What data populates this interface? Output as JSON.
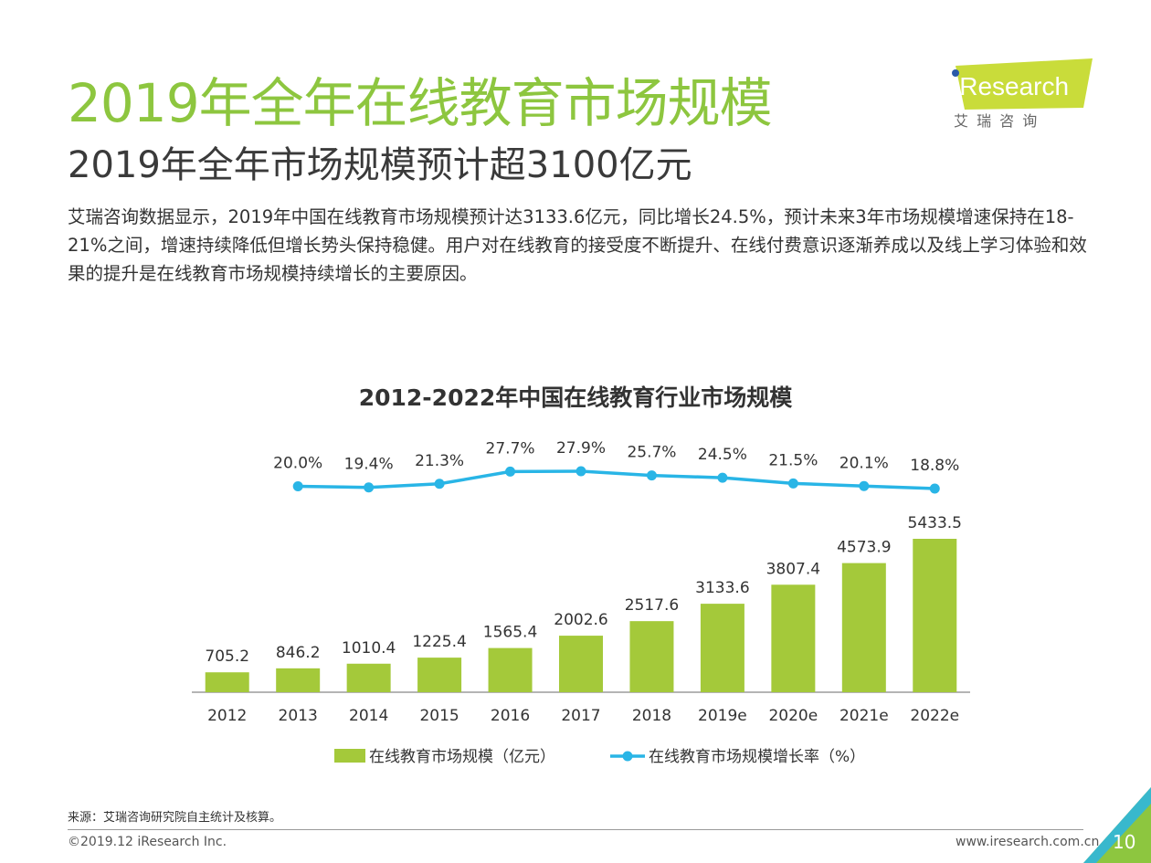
{
  "title": "2019年全年在线教育市场规模",
  "subtitle": "2019年全年市场规模预计超3100亿元",
  "body": "艾瑞咨询数据显示，2019年中国在线教育市场规模预计达3133.6亿元，同比增长24.5%，预计未来3年市场规模增速保持在18-21%之间，增速持续降低但增长势头保持稳健。用户对在线教育的接受度不断提升、在线付费意识逐渐养成以及线上学习体验和效果的提升是在线教育市场规模持续增长的主要原因。",
  "logo": {
    "text": "iResearch",
    "cn": "艾 瑞 咨 询"
  },
  "chart_data": {
    "type": "bar",
    "title": "2012-2022年中国在线教育行业市场规模",
    "categories": [
      "2012",
      "2013",
      "2014",
      "2015",
      "2016",
      "2017",
      "2018",
      "2019e",
      "2020e",
      "2021e",
      "2022e"
    ],
    "series": [
      {
        "name": "在线教育市场规模（亿元）",
        "type": "bar",
        "color": "#a4c93a",
        "values": [
          705.2,
          846.2,
          1010.4,
          1225.4,
          1565.4,
          2002.6,
          2517.6,
          3133.6,
          3807.4,
          4573.9,
          5433.5
        ],
        "labels": [
          "705.2",
          "846.2",
          "1010.4",
          "1225.4",
          "1565.4",
          "2002.6",
          "2517.6",
          "3133.6",
          "3807.4",
          "4573.9",
          "5433.5"
        ]
      },
      {
        "name": "在线教育市场规模增长率（%）",
        "type": "line",
        "color": "#29b5e6",
        "values": [
          null,
          20.0,
          19.4,
          21.3,
          27.7,
          27.9,
          25.7,
          24.5,
          21.5,
          20.1,
          18.8
        ],
        "labels": [
          null,
          "20.0%",
          "19.4%",
          "21.3%",
          "27.7%",
          "27.9%",
          "25.7%",
          "24.5%",
          "21.5%",
          "20.1%",
          "18.8%"
        ]
      }
    ],
    "legend_position": "bottom",
    "grid": false
  },
  "source": "来源：艾瑞咨询研究院自主统计及核算。",
  "copyright": "©2019.12 iResearch Inc.",
  "website": "www.iresearch.com.cn",
  "page_number": "10",
  "colors": {
    "accent": "#8dc63f",
    "bar": "#a4c93a",
    "line": "#29b5e6"
  }
}
